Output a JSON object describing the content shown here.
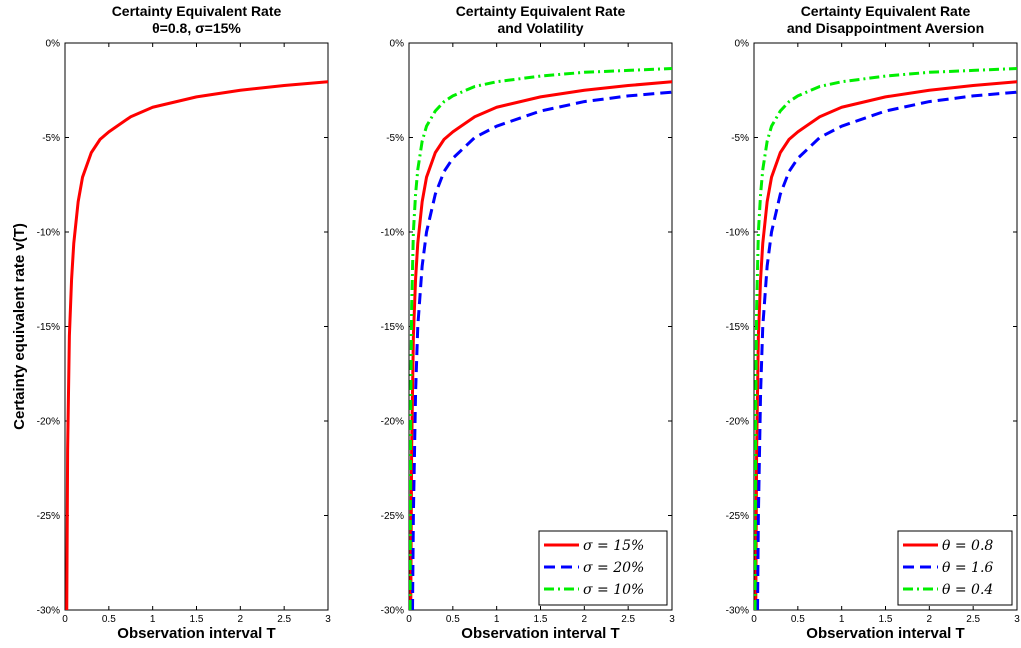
{
  "chart_data": [
    {
      "type": "line",
      "title_line1": "Certainty Equivalent Rate",
      "title_line2": "θ=0.8, σ=15%",
      "xlabel": "Observation interval T",
      "ylabel": "Certainty equivalent rate v(T)",
      "xlim": [
        0,
        3
      ],
      "ylim": [
        -30,
        0
      ],
      "x_ticks": [
        "0",
        "0.5",
        "1",
        "1.5",
        "2",
        "2.5",
        "3"
      ],
      "y_ticks": [
        "0%",
        "-5%",
        "-10%",
        "-15%",
        "-20%",
        "-25%",
        "-30%"
      ],
      "grid": false,
      "legend": null,
      "series": [
        {
          "color": "#ff0000",
          "dash": "solid",
          "x": [
            0.02,
            0.03,
            0.05,
            0.075,
            0.1,
            0.15,
            0.2,
            0.3,
            0.4,
            0.5,
            0.75,
            1.0,
            1.5,
            2.0,
            2.5,
            3.0
          ],
          "y": [
            -30,
            -21.5,
            -15.5,
            -12.5,
            -10.6,
            -8.4,
            -7.1,
            -5.8,
            -5.1,
            -4.7,
            -3.9,
            -3.4,
            -2.85,
            -2.5,
            -2.25,
            -2.05
          ]
        }
      ]
    },
    {
      "type": "line",
      "title_line1": "Certainty Equivalent Rate",
      "title_line2": "and Volatility",
      "xlabel": "Observation interval T",
      "ylabel": "",
      "xlim": [
        0,
        3
      ],
      "ylim": [
        -30,
        0
      ],
      "x_ticks": [
        "0",
        "0.5",
        "1",
        "1.5",
        "2",
        "2.5",
        "3"
      ],
      "y_ticks": [
        "0%",
        "-5%",
        "-10%",
        "-15%",
        "-20%",
        "-25%",
        "-30%"
      ],
      "grid": false,
      "legend": "bottom-right",
      "series": [
        {
          "name": "σ = 15%",
          "color": "#ff0000",
          "dash": "solid",
          "x": [
            0.02,
            0.03,
            0.05,
            0.075,
            0.1,
            0.15,
            0.2,
            0.3,
            0.4,
            0.5,
            0.75,
            1.0,
            1.5,
            2.0,
            2.5,
            3.0
          ],
          "y": [
            -30,
            -21.5,
            -15.5,
            -12.5,
            -10.6,
            -8.4,
            -7.1,
            -5.8,
            -5.1,
            -4.7,
            -3.9,
            -3.4,
            -2.85,
            -2.5,
            -2.25,
            -2.05
          ]
        },
        {
          "name": "σ = 20%",
          "color": "#0000ff",
          "dash": "dashed",
          "x": [
            0.04,
            0.05,
            0.075,
            0.1,
            0.15,
            0.2,
            0.3,
            0.4,
            0.5,
            0.75,
            1.0,
            1.5,
            2.0,
            2.5,
            3.0
          ],
          "y": [
            -30,
            -25,
            -18.5,
            -15,
            -11.8,
            -10,
            -8,
            -6.8,
            -6.1,
            -5.0,
            -4.4,
            -3.6,
            -3.1,
            -2.8,
            -2.6
          ]
        },
        {
          "name": "σ = 10%",
          "color": "#00ee00",
          "dash": "dashdot",
          "x": [
            0.012,
            0.02,
            0.03,
            0.05,
            0.075,
            0.1,
            0.15,
            0.2,
            0.3,
            0.4,
            0.5,
            0.75,
            1.0,
            1.5,
            2.0,
            2.5,
            3.0
          ],
          "y": [
            -30,
            -19,
            -14,
            -10,
            -8,
            -6.7,
            -5.2,
            -4.4,
            -3.6,
            -3.1,
            -2.8,
            -2.3,
            -2.05,
            -1.75,
            -1.55,
            -1.45,
            -1.35
          ]
        }
      ]
    },
    {
      "type": "line",
      "title_line1": "Certainty Equivalent Rate",
      "title_line2": "and Disappointment Aversion",
      "xlabel": "Observation interval T",
      "ylabel": "",
      "xlim": [
        0,
        3
      ],
      "ylim": [
        -30,
        0
      ],
      "x_ticks": [
        "0",
        "0.5",
        "1",
        "1.5",
        "2",
        "2.5",
        "3"
      ],
      "y_ticks": [
        "0%",
        "-5%",
        "-10%",
        "-15%",
        "-20%",
        "-25%",
        "-30%"
      ],
      "grid": false,
      "legend": "bottom-right",
      "series": [
        {
          "name": "θ = 0.8",
          "color": "#ff0000",
          "dash": "solid",
          "x": [
            0.02,
            0.03,
            0.05,
            0.075,
            0.1,
            0.15,
            0.2,
            0.3,
            0.4,
            0.5,
            0.75,
            1.0,
            1.5,
            2.0,
            2.5,
            3.0
          ],
          "y": [
            -30,
            -21.5,
            -15.5,
            -12.5,
            -10.6,
            -8.4,
            -7.1,
            -5.8,
            -5.1,
            -4.7,
            -3.9,
            -3.4,
            -2.85,
            -2.5,
            -2.25,
            -2.05
          ]
        },
        {
          "name": "θ = 1.6",
          "color": "#0000ff",
          "dash": "dashed",
          "x": [
            0.04,
            0.05,
            0.075,
            0.1,
            0.15,
            0.2,
            0.3,
            0.4,
            0.5,
            0.75,
            1.0,
            1.5,
            2.0,
            2.5,
            3.0
          ],
          "y": [
            -30,
            -25,
            -18.5,
            -15,
            -11.8,
            -10,
            -8,
            -6.8,
            -6.1,
            -5.0,
            -4.4,
            -3.6,
            -3.1,
            -2.8,
            -2.6
          ]
        },
        {
          "name": "θ = 0.4",
          "color": "#00ee00",
          "dash": "dashdot",
          "x": [
            0.012,
            0.02,
            0.03,
            0.05,
            0.075,
            0.1,
            0.15,
            0.2,
            0.3,
            0.4,
            0.5,
            0.75,
            1.0,
            1.5,
            2.0,
            2.5,
            3.0
          ],
          "y": [
            -30,
            -19,
            -14,
            -10,
            -8,
            -6.7,
            -5.2,
            -4.4,
            -3.6,
            -3.1,
            -2.8,
            -2.3,
            -2.05,
            -1.75,
            -1.55,
            -1.45,
            -1.35
          ]
        }
      ]
    }
  ]
}
